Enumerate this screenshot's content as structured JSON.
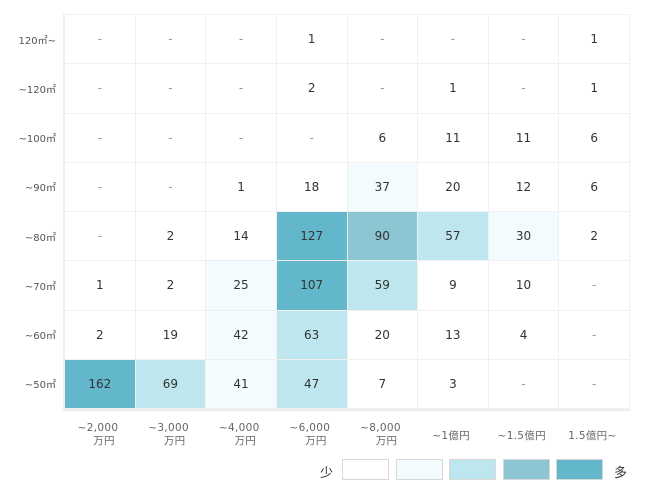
{
  "chart_data": {
    "type": "heatmap",
    "rows": [
      "120㎡~",
      "~120㎡",
      "~100㎡",
      "~90㎡",
      "~80㎡",
      "~70㎡",
      "~60㎡",
      "~50㎡"
    ],
    "columns": [
      [
        "~2,000",
        "万円"
      ],
      [
        "~3,000",
        "万円"
      ],
      [
        "~4,000",
        "万円"
      ],
      [
        "~6,000",
        "万円"
      ],
      [
        "~8,000",
        "万円"
      ],
      [
        "~1億円"
      ],
      [
        "~1.5億円"
      ],
      [
        "1.5億円~"
      ]
    ],
    "values": [
      [
        "-",
        "-",
        "-",
        "1",
        "-",
        "-",
        "-",
        "1"
      ],
      [
        "-",
        "-",
        "-",
        "2",
        "-",
        "1",
        "-",
        "1"
      ],
      [
        "-",
        "-",
        "-",
        "-",
        "6",
        "11",
        "11",
        "6"
      ],
      [
        "-",
        "-",
        "1",
        "18",
        "37",
        "20",
        "12",
        "6"
      ],
      [
        "-",
        "2",
        "14",
        "127",
        "90",
        "57",
        "30",
        "2"
      ],
      [
        "1",
        "2",
        "25",
        "107",
        "59",
        "9",
        "10",
        "-"
      ],
      [
        "2",
        "19",
        "42",
        "63",
        "20",
        "13",
        "4",
        "-"
      ],
      [
        "162",
        "69",
        "41",
        "47",
        "7",
        "3",
        "-",
        "-"
      ]
    ],
    "levels": [
      [
        0,
        0,
        0,
        0,
        0,
        0,
        0,
        0
      ],
      [
        0,
        0,
        0,
        0,
        0,
        0,
        0,
        0
      ],
      [
        0,
        0,
        0,
        0,
        0,
        0,
        0,
        0
      ],
      [
        0,
        0,
        0,
        0,
        1,
        0,
        0,
        0
      ],
      [
        0,
        0,
        0,
        4,
        3,
        2,
        1,
        0
      ],
      [
        0,
        0,
        1,
        4,
        2,
        0,
        0,
        0
      ],
      [
        0,
        0,
        1,
        2,
        0,
        0,
        0,
        0
      ],
      [
        4,
        2,
        1,
        2,
        0,
        0,
        0,
        0
      ]
    ],
    "level_colors": [
      "#ffffff",
      "#f2fbfd",
      "#bde6ef",
      "#8cc6d3",
      "#62b7cb"
    ],
    "legend": {
      "low": "少",
      "high": "多"
    }
  }
}
